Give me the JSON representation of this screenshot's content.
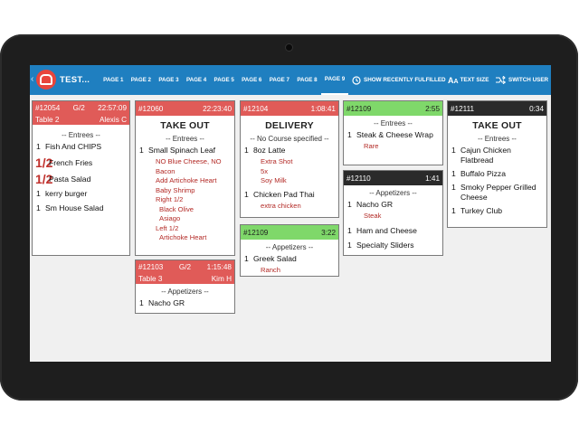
{
  "app": {
    "title": "TEST..."
  },
  "pages": [
    "PAGE 1",
    "PAGE 2",
    "PAGE 3",
    "PAGE 4",
    "PAGE 5",
    "PAGE 6",
    "PAGE 7",
    "PAGE 8",
    "PAGE 9"
  ],
  "toolbar": {
    "recent": "SHOW RECENTLY FULFILLED",
    "text_size": "TEXT SIZE",
    "switch_user": "SWITCH USER"
  },
  "tickets": {
    "t12054": {
      "id": "#12054",
      "guests": "G/2",
      "time": "22:57:09",
      "table": "Table 2",
      "server": "Alexis C",
      "course": "-- Entrees --",
      "items": [
        {
          "qty": "1",
          "name": "Fish And CHIPS"
        },
        {
          "qty": "1/2",
          "name": "French Fries"
        },
        {
          "qty": "1/2",
          "name": "Pasta Salad"
        },
        {
          "qty": "1",
          "name": "kerry burger"
        },
        {
          "qty": "1",
          "name": "Sm House Salad"
        }
      ]
    },
    "t12060": {
      "id": "#12060",
      "time": "22:23:40",
      "title": "TAKE OUT",
      "course": "-- Entrees --",
      "item": {
        "qty": "1",
        "name": "Small Spinach Leaf"
      },
      "mods": [
        "NO Blue Cheese, NO Bacon",
        "Add Artichoke Heart",
        "Baby Shrimp",
        "Right 1/2",
        "Black Olive",
        "Asiago",
        "Left 1/2",
        "Artichoke Heart"
      ]
    },
    "t12103": {
      "id": "#12103",
      "guests": "G/2",
      "time": "1:15:48",
      "table": "Table 3",
      "server": "Kim H",
      "course": "-- Appetizers --",
      "item": {
        "qty": "1",
        "name": "Nacho GR"
      }
    },
    "t12104": {
      "id": "#12104",
      "time": "1:08:41",
      "title": "DELIVERY",
      "course": "-- No Course specified --",
      "item1": {
        "qty": "1",
        "name": "8oz Latte"
      },
      "mods1": [
        "Extra Shot",
        "5x",
        "Soy Milk"
      ],
      "item2": {
        "qty": "1",
        "name": "Chicken Pad Thai"
      },
      "mods2": [
        "extra chicken"
      ]
    },
    "t12109a": {
      "id": "#12109",
      "time": "3:22",
      "course": "-- Appetizers --",
      "item": {
        "qty": "1",
        "name": "Greek Salad"
      },
      "mods": [
        "Ranch"
      ]
    },
    "t12109b": {
      "id": "#12109",
      "time": "2:55",
      "course": "-- Entrees --",
      "item": {
        "qty": "1",
        "name": "Steak & Cheese Wrap"
      },
      "mods": [
        "Rare"
      ]
    },
    "t12110": {
      "id": "#12110",
      "time": "1:41",
      "course": "-- Appetizers --",
      "item1": {
        "qty": "1",
        "name": "Nacho GR"
      },
      "mods1": [
        "Steak"
      ],
      "item2": {
        "qty": "1",
        "name": "Ham and Cheese"
      },
      "item3": {
        "qty": "1",
        "name": "Specialty Sliders"
      }
    },
    "t12111": {
      "id": "#12111",
      "time": "0:34",
      "title": "TAKE OUT",
      "course": "-- Entrees --",
      "items": [
        {
          "qty": "1",
          "name": "Cajun Chicken Flatbread"
        },
        {
          "qty": "1",
          "name": "Buffalo Pizza"
        },
        {
          "qty": "1",
          "name": "Smoky Pepper Grilled Cheese"
        },
        {
          "qty": "1",
          "name": "Turkey Club"
        }
      ]
    }
  },
  "colors": {
    "topbar": "#1f7fc0",
    "header_red": "#e05b58",
    "header_green": "#7fd86a",
    "header_dark": "#2a2a2a",
    "modifier": "#b32a26"
  }
}
